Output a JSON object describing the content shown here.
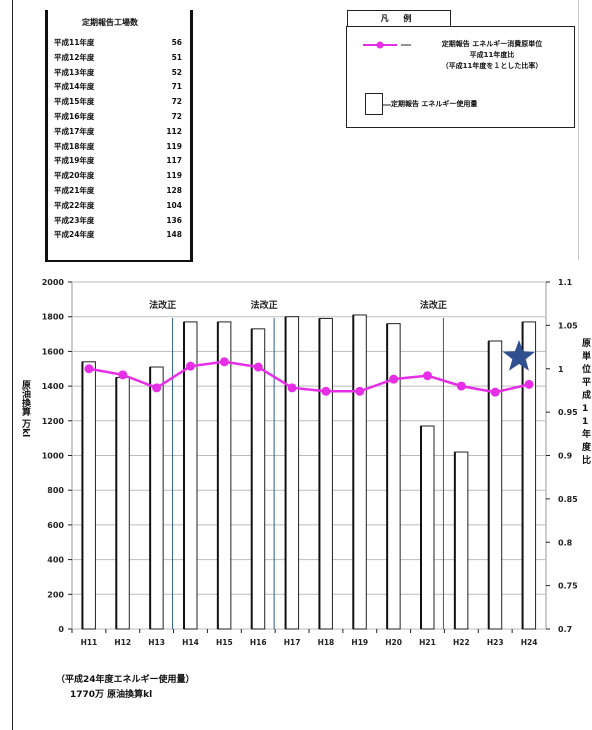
{
  "factory_table": {
    "title": "定期報告工場数",
    "rows": [
      {
        "year": "平成11年度",
        "count": "56"
      },
      {
        "year": "平成12年度",
        "count": "51"
      },
      {
        "year": "平成13年度",
        "count": "52"
      },
      {
        "year": "平成14年度",
        "count": "71"
      },
      {
        "year": "平成15年度",
        "count": "72"
      },
      {
        "year": "平成16年度",
        "count": "72"
      },
      {
        "year": "平成17年度",
        "count": "112"
      },
      {
        "year": "平成18年度",
        "count": "119"
      },
      {
        "year": "平成19年度",
        "count": "117"
      },
      {
        "year": "平成20年度",
        "count": "119"
      },
      {
        "year": "平成21年度",
        "count": "128"
      },
      {
        "year": "平成22年度",
        "count": "104"
      },
      {
        "year": "平成23年度",
        "count": "136"
      },
      {
        "year": "平成24年度",
        "count": "148"
      }
    ]
  },
  "legend": {
    "title": "凡 例",
    "line_label_1": "定期報告 エネルギー消費原単位",
    "line_label_2": "平成11年度比",
    "line_label_3": "（平成11年度を１とした比率）",
    "bar_label": "定期報告 エネルギー使用量"
  },
  "axis_labels": {
    "y_left": "原油換算 万kl",
    "y_right": "原単位平成11年度比"
  },
  "footnote": {
    "line1": "（平成24年度エネルギー使用量）",
    "line2": "1770万 原油換算kl"
  },
  "colors": {
    "line": "#e62ee6",
    "bar_border": "#222222",
    "grid": "#bbbbbb",
    "annotation_line": "#2e5c8a",
    "star": "#2f4f8f"
  },
  "chart_data": {
    "type": "bar",
    "categories": [
      "H11",
      "H12",
      "H13",
      "H14",
      "H15",
      "H16",
      "H17",
      "H18",
      "H19",
      "H20",
      "H21",
      "H22",
      "H23",
      "H24"
    ],
    "series": [
      {
        "name": "定期報告 エネルギー使用量",
        "type": "bar",
        "axis": "left",
        "values": [
          1540,
          1450,
          1510,
          1770,
          1770,
          1730,
          1800,
          1790,
          1810,
          1760,
          1170,
          1020,
          1660,
          1770
        ]
      },
      {
        "name": "定期報告 エネルギー消費原単位",
        "type": "line",
        "axis": "right",
        "values": [
          1.0,
          0.993,
          0.978,
          1.003,
          1.008,
          1.002,
          0.978,
          0.974,
          0.974,
          0.988,
          0.992,
          0.98,
          0.973,
          0.982
        ]
      }
    ],
    "y_left": {
      "min": 0,
      "max": 2000,
      "ticks": [
        "0",
        "200",
        "400",
        "600",
        "800",
        "1000",
        "1200",
        "1400",
        "1600",
        "1800",
        "2000"
      ]
    },
    "y_right": {
      "min": 0.7,
      "max": 1.1,
      "ticks": [
        "0.7",
        "0.75",
        "0.8",
        "0.85",
        "0.9",
        "0.95",
        "1",
        "1.05",
        "1.1"
      ]
    },
    "grid": true,
    "annotations": [
      {
        "text": "法改正",
        "after_category": "H13"
      },
      {
        "text": "法改正",
        "after_category": "H16"
      },
      {
        "text": "法改正",
        "after_category": "H21"
      }
    ]
  }
}
